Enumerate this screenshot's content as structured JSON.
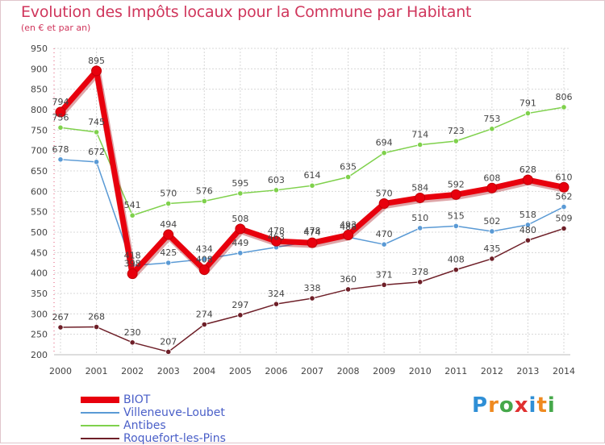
{
  "title": "Evolution des Impôts locaux pour la Commune par Habitant",
  "subtitle": "(en € et par an)",
  "brand": {
    "letters": [
      "P",
      "r",
      "o",
      "x",
      "i",
      "t",
      "i"
    ],
    "colors": [
      "#2f8fd6",
      "#ef8a20",
      "#45a84a",
      "#e03030",
      "#2f8fd6",
      "#ef8a20",
      "#45a84a"
    ]
  },
  "chart_data": {
    "type": "line",
    "title": "Evolution des Impôts locaux pour la Commune par Habitant",
    "ylabel": "(en € et par an)",
    "xlabel": "",
    "x": [
      "2000",
      "2001",
      "2002",
      "2003",
      "2004",
      "2005",
      "2006",
      "2007",
      "2008",
      "2009",
      "2010",
      "2011",
      "2012",
      "2013",
      "2014"
    ],
    "ylim": [
      200,
      950
    ],
    "yticks": [
      200,
      250,
      300,
      350,
      400,
      450,
      500,
      550,
      600,
      650,
      700,
      750,
      800,
      850,
      900,
      950
    ],
    "grid": true,
    "series": [
      {
        "name": "BIOT",
        "color": "#e8000d",
        "values": [
          794,
          895,
          398,
          494,
          408,
          508,
          478,
          474,
          493,
          570,
          584,
          592,
          608,
          628,
          610
        ]
      },
      {
        "name": "Villeneuve-Loubet",
        "color": "#5a9ad5",
        "values": [
          678,
          672,
          418,
          425,
          434,
          449,
          463,
          478,
          488,
          470,
          510,
          515,
          502,
          518,
          562
        ]
      },
      {
        "name": "Antibes",
        "color": "#7fd14c",
        "values": [
          756,
          745,
          541,
          570,
          576,
          595,
          603,
          614,
          635,
          694,
          714,
          723,
          753,
          791,
          806
        ]
      },
      {
        "name": "Roquefort-les-Pins",
        "color": "#6e1f28",
        "values": [
          267,
          268,
          230,
          207,
          274,
          297,
          324,
          338,
          360,
          371,
          378,
          408,
          435,
          480,
          509
        ]
      }
    ]
  }
}
